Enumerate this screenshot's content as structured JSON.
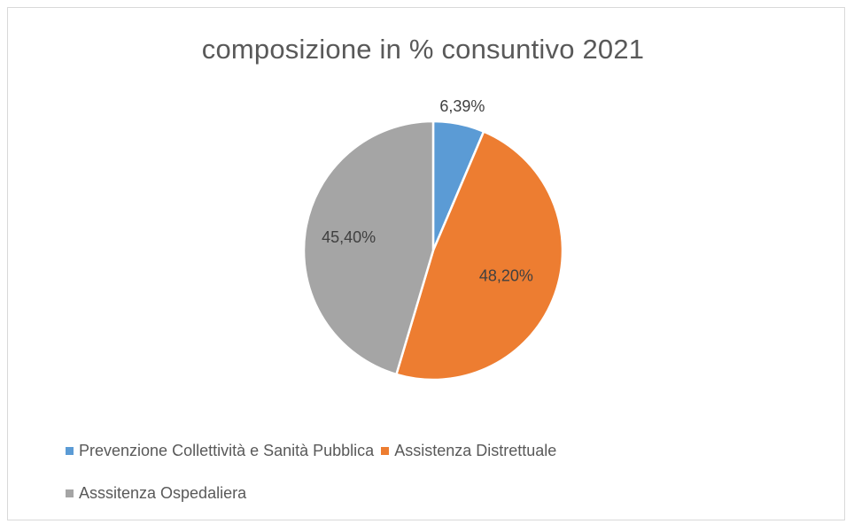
{
  "chart_data": {
    "type": "pie",
    "title": "composizione in % consuntivo 2021",
    "series": [
      {
        "values": [
          6.39,
          48.2,
          45.4
        ]
      }
    ],
    "slices": [
      {
        "label": "Prevenzione Collettività e Sanità Pubblica",
        "value": 6.39,
        "data_label": "6,39%",
        "color": "#5b9bd5"
      },
      {
        "label": "Assistenza Distrettuale",
        "value": 48.2,
        "data_label": "48,20%",
        "color": "#ed7d31"
      },
      {
        "label": "Asssitenza Ospedaliera",
        "value": 45.4,
        "data_label": "45,40%",
        "color": "#a5a5a5"
      }
    ],
    "legend_position": "bottom",
    "start_angle": "12 o'clock, clockwise"
  }
}
